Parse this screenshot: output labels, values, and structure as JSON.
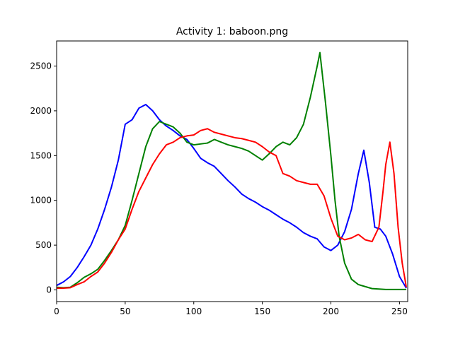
{
  "chart_data": {
    "type": "line",
    "title": "Activity 1: baboon.png",
    "xlabel": "",
    "ylabel": "",
    "xlim": [
      0,
      256
    ],
    "ylim": [
      -130,
      2780
    ],
    "xticks": [
      0,
      50,
      100,
      150,
      200,
      250
    ],
    "yticks": [
      0,
      500,
      1000,
      1500,
      2000,
      2500
    ],
    "grid": false,
    "series": [
      {
        "color": "#0000ff",
        "points": [
          [
            0,
            50
          ],
          [
            5,
            90
          ],
          [
            10,
            150
          ],
          [
            15,
            250
          ],
          [
            20,
            370
          ],
          [
            25,
            500
          ],
          [
            30,
            680
          ],
          [
            35,
            900
          ],
          [
            40,
            1150
          ],
          [
            45,
            1450
          ],
          [
            50,
            1850
          ],
          [
            55,
            1900
          ],
          [
            60,
            2030
          ],
          [
            65,
            2070
          ],
          [
            70,
            2000
          ],
          [
            75,
            1900
          ],
          [
            80,
            1830
          ],
          [
            85,
            1780
          ],
          [
            90,
            1720
          ],
          [
            95,
            1680
          ],
          [
            100,
            1580
          ],
          [
            105,
            1470
          ],
          [
            110,
            1420
          ],
          [
            115,
            1380
          ],
          [
            120,
            1300
          ],
          [
            125,
            1220
          ],
          [
            130,
            1150
          ],
          [
            135,
            1070
          ],
          [
            140,
            1020
          ],
          [
            145,
            980
          ],
          [
            150,
            930
          ],
          [
            155,
            890
          ],
          [
            160,
            840
          ],
          [
            165,
            790
          ],
          [
            170,
            750
          ],
          [
            175,
            700
          ],
          [
            180,
            640
          ],
          [
            185,
            600
          ],
          [
            190,
            570
          ],
          [
            195,
            480
          ],
          [
            200,
            440
          ],
          [
            205,
            500
          ],
          [
            210,
            650
          ],
          [
            215,
            900
          ],
          [
            220,
            1300
          ],
          [
            224,
            1560
          ],
          [
            228,
            1200
          ],
          [
            232,
            700
          ],
          [
            236,
            680
          ],
          [
            240,
            600
          ],
          [
            245,
            400
          ],
          [
            250,
            150
          ],
          [
            255,
            20
          ]
        ]
      },
      {
        "color": "#008000",
        "points": [
          [
            0,
            30
          ],
          [
            5,
            25
          ],
          [
            10,
            30
          ],
          [
            15,
            80
          ],
          [
            20,
            140
          ],
          [
            25,
            180
          ],
          [
            30,
            230
          ],
          [
            35,
            330
          ],
          [
            40,
            440
          ],
          [
            45,
            560
          ],
          [
            50,
            720
          ],
          [
            55,
            1000
          ],
          [
            60,
            1300
          ],
          [
            65,
            1600
          ],
          [
            70,
            1800
          ],
          [
            75,
            1880
          ],
          [
            80,
            1850
          ],
          [
            85,
            1820
          ],
          [
            90,
            1750
          ],
          [
            95,
            1650
          ],
          [
            100,
            1620
          ],
          [
            105,
            1630
          ],
          [
            110,
            1640
          ],
          [
            115,
            1680
          ],
          [
            120,
            1650
          ],
          [
            125,
            1620
          ],
          [
            130,
            1600
          ],
          [
            135,
            1580
          ],
          [
            140,
            1550
          ],
          [
            145,
            1500
          ],
          [
            150,
            1450
          ],
          [
            155,
            1520
          ],
          [
            160,
            1600
          ],
          [
            165,
            1650
          ],
          [
            170,
            1620
          ],
          [
            175,
            1700
          ],
          [
            180,
            1850
          ],
          [
            185,
            2150
          ],
          [
            190,
            2500
          ],
          [
            192,
            2650
          ],
          [
            196,
            2100
          ],
          [
            200,
            1500
          ],
          [
            203,
            1000
          ],
          [
            206,
            600
          ],
          [
            210,
            300
          ],
          [
            215,
            120
          ],
          [
            220,
            60
          ],
          [
            230,
            15
          ],
          [
            240,
            5
          ],
          [
            255,
            5
          ]
        ]
      },
      {
        "color": "#ff0000",
        "points": [
          [
            0,
            20
          ],
          [
            5,
            20
          ],
          [
            10,
            25
          ],
          [
            15,
            60
          ],
          [
            20,
            90
          ],
          [
            25,
            150
          ],
          [
            30,
            200
          ],
          [
            35,
            300
          ],
          [
            40,
            420
          ],
          [
            45,
            560
          ],
          [
            50,
            680
          ],
          [
            55,
            900
          ],
          [
            60,
            1100
          ],
          [
            65,
            1250
          ],
          [
            70,
            1400
          ],
          [
            75,
            1520
          ],
          [
            80,
            1620
          ],
          [
            85,
            1650
          ],
          [
            90,
            1700
          ],
          [
            95,
            1720
          ],
          [
            100,
            1730
          ],
          [
            105,
            1780
          ],
          [
            110,
            1800
          ],
          [
            115,
            1760
          ],
          [
            120,
            1740
          ],
          [
            125,
            1720
          ],
          [
            130,
            1700
          ],
          [
            135,
            1690
          ],
          [
            140,
            1670
          ],
          [
            145,
            1650
          ],
          [
            150,
            1600
          ],
          [
            155,
            1540
          ],
          [
            160,
            1500
          ],
          [
            165,
            1300
          ],
          [
            170,
            1270
          ],
          [
            175,
            1220
          ],
          [
            180,
            1200
          ],
          [
            185,
            1180
          ],
          [
            190,
            1180
          ],
          [
            195,
            1050
          ],
          [
            200,
            800
          ],
          [
            205,
            600
          ],
          [
            210,
            560
          ],
          [
            215,
            580
          ],
          [
            220,
            620
          ],
          [
            225,
            560
          ],
          [
            230,
            540
          ],
          [
            235,
            700
          ],
          [
            238,
            1100
          ],
          [
            240,
            1400
          ],
          [
            243,
            1650
          ],
          [
            246,
            1300
          ],
          [
            249,
            700
          ],
          [
            252,
            300
          ],
          [
            255,
            30
          ]
        ]
      }
    ]
  }
}
